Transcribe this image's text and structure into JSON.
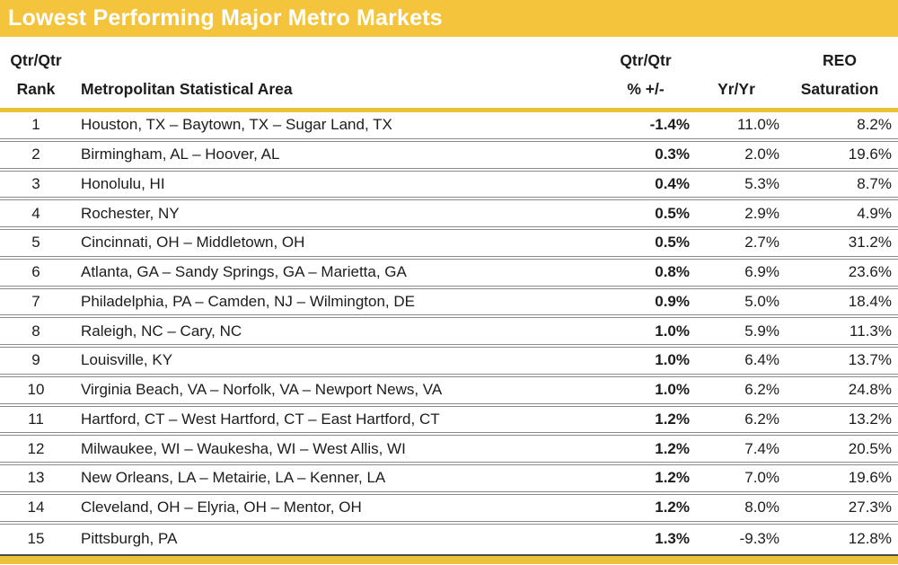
{
  "title": "Lowest Performing Major Metro Markets",
  "columns": {
    "rank": {
      "line1": "Qtr/Qtr",
      "line2": "Rank"
    },
    "metro": {
      "label": "Metropolitan Statistical Area"
    },
    "qtr": {
      "line1": "Qtr/Qtr",
      "line2": "% +/-"
    },
    "yoy": {
      "label": "Yr/Yr"
    },
    "reo": {
      "line1": "REO",
      "line2": "Saturation"
    }
  },
  "colors": {
    "title_bar": "#F3C43C",
    "header_rule": "#E9C23A",
    "bottom_bar": "#E9C23A",
    "row_separator": "#8c8c8c",
    "bottom_rule": "#4a4a4a",
    "title_text": "#FFFFFF",
    "body_text": "#1c1c1c"
  },
  "chart_data": {
    "type": "table",
    "title": "Lowest Performing Major Metro Markets",
    "columns": [
      "Qtr/Qtr Rank",
      "Metropolitan Statistical Area",
      "Qtr/Qtr % +/-",
      "Yr/Yr",
      "REO Saturation"
    ],
    "rows": [
      {
        "rank": "1",
        "metro": "Houston, TX – Baytown, TX – Sugar Land, TX",
        "qtr": "-1.4%",
        "yoy": "11.0%",
        "reo": "8.2%"
      },
      {
        "rank": "2",
        "metro": "Birmingham, AL – Hoover, AL",
        "qtr": "0.3%",
        "yoy": "2.0%",
        "reo": "19.6%"
      },
      {
        "rank": "3",
        "metro": "Honolulu, HI",
        "qtr": "0.4%",
        "yoy": "5.3%",
        "reo": "8.7%"
      },
      {
        "rank": "4",
        "metro": "Rochester, NY",
        "qtr": "0.5%",
        "yoy": "2.9%",
        "reo": "4.9%"
      },
      {
        "rank": "5",
        "metro": "Cincinnati, OH – Middletown, OH",
        "qtr": "0.5%",
        "yoy": "2.7%",
        "reo": "31.2%"
      },
      {
        "rank": "6",
        "metro": "Atlanta, GA – Sandy Springs, GA – Marietta, GA",
        "qtr": "0.8%",
        "yoy": "6.9%",
        "reo": "23.6%"
      },
      {
        "rank": "7",
        "metro": "Philadelphia, PA – Camden, NJ – Wilmington, DE",
        "qtr": "0.9%",
        "yoy": "5.0%",
        "reo": "18.4%"
      },
      {
        "rank": "8",
        "metro": "Raleigh, NC – Cary, NC",
        "qtr": "1.0%",
        "yoy": "5.9%",
        "reo": "11.3%"
      },
      {
        "rank": "9",
        "metro": "Louisville, KY",
        "qtr": "1.0%",
        "yoy": "6.4%",
        "reo": "13.7%"
      },
      {
        "rank": "10",
        "metro": "Virginia Beach, VA – Norfolk, VA – Newport News, VA",
        "qtr": "1.0%",
        "yoy": "6.2%",
        "reo": "24.8%"
      },
      {
        "rank": "11",
        "metro": "Hartford, CT – West Hartford, CT – East Hartford, CT",
        "qtr": "1.2%",
        "yoy": "6.2%",
        "reo": "13.2%"
      },
      {
        "rank": "12",
        "metro": "Milwaukee, WI – Waukesha, WI – West Allis, WI",
        "qtr": "1.2%",
        "yoy": "7.4%",
        "reo": "20.5%"
      },
      {
        "rank": "13",
        "metro": "New Orleans, LA – Metairie, LA – Kenner, LA",
        "qtr": "1.2%",
        "yoy": "7.0%",
        "reo": "19.6%"
      },
      {
        "rank": "14",
        "metro": "Cleveland, OH – Elyria, OH – Mentor, OH",
        "qtr": "1.2%",
        "yoy": "8.0%",
        "reo": "27.3%"
      },
      {
        "rank": "15",
        "metro": "Pittsburgh, PA",
        "qtr": "1.3%",
        "yoy": "-9.3%",
        "reo": "12.8%"
      }
    ]
  }
}
